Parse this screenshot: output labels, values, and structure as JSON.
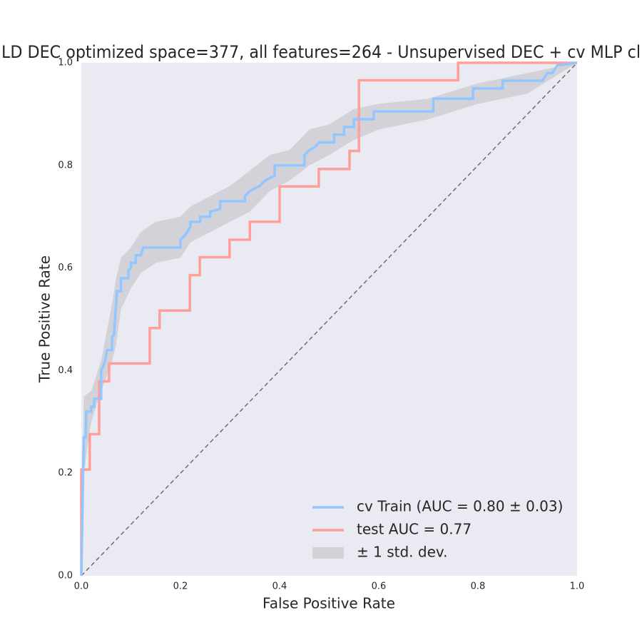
{
  "chart_data": {
    "type": "line",
    "title": "LD DEC optimized space=377, all features=264 - Unsupervised DEC + cv MLP cl",
    "xlabel": "False Positive Rate",
    "ylabel": "True Positive Rate",
    "xlim": [
      0,
      1
    ],
    "ylim": [
      0,
      1
    ],
    "xticks": [
      {
        "value": 0,
        "label": "0.0"
      },
      0.2,
      0.4,
      0.6,
      0.8,
      {
        "value": 1,
        "label": "1.0"
      }
    ],
    "yticks": [
      {
        "value": 0,
        "label": "0.0"
      },
      0.2,
      0.4,
      0.6,
      0.8,
      {
        "value": 1,
        "label": "1.0"
      }
    ],
    "grid": false,
    "legend": "lower right",
    "diagonal": true,
    "series": [
      {
        "name": "cv Train (AUC = 0.80 ± 0.03)",
        "color": "#92c6ff",
        "x": [
          0,
          0.003,
          0.005,
          0.009,
          0.01,
          0.02,
          0.02,
          0.026,
          0.026,
          0.04,
          0.04,
          0.045,
          0.048,
          0.05,
          0.052,
          0.062,
          0.062,
          0.066,
          0.068,
          0.072,
          0.08,
          0.08,
          0.095,
          0.095,
          0.1,
          0.1,
          0.11,
          0.11,
          0.12,
          0.125,
          0.2,
          0.2,
          0.21,
          0.22,
          0.22,
          0.24,
          0.24,
          0.26,
          0.26,
          0.28,
          0.28,
          0.33,
          0.33,
          0.34,
          0.35,
          0.36,
          0.37,
          0.38,
          0.39,
          0.39,
          0.45,
          0.45,
          0.46,
          0.47,
          0.48,
          0.51,
          0.51,
          0.53,
          0.53,
          0.55,
          0.55,
          0.59,
          0.59,
          0.71,
          0.71,
          0.79,
          0.79,
          0.85,
          0.85,
          0.93,
          0.94,
          0.95,
          0.96,
          1
        ],
        "values": [
          0,
          0.17,
          0.27,
          0.27,
          0.32,
          0.32,
          0.33,
          0.33,
          0.345,
          0.345,
          0.4,
          0.41,
          0.42,
          0.43,
          0.44,
          0.44,
          0.465,
          0.47,
          0.5,
          0.555,
          0.555,
          0.58,
          0.58,
          0.595,
          0.6,
          0.61,
          0.61,
          0.625,
          0.625,
          0.64,
          0.64,
          0.655,
          0.665,
          0.68,
          0.69,
          0.69,
          0.7,
          0.7,
          0.71,
          0.715,
          0.73,
          0.73,
          0.74,
          0.75,
          0.755,
          0.76,
          0.77,
          0.775,
          0.78,
          0.8,
          0.8,
          0.82,
          0.83,
          0.835,
          0.845,
          0.845,
          0.86,
          0.86,
          0.875,
          0.875,
          0.89,
          0.89,
          0.905,
          0.905,
          0.93,
          0.93,
          0.95,
          0.95,
          0.965,
          0.965,
          0.98,
          0.98,
          0.995,
          1
        ]
      },
      {
        "name": "test AUC = 0.77",
        "color": "#ff9f9a",
        "x": [
          0,
          0,
          0.017,
          0.017,
          0.036,
          0.036,
          0.056,
          0.056,
          0.138,
          0.138,
          0.158,
          0.158,
          0.219,
          0.219,
          0.239,
          0.239,
          0.299,
          0.299,
          0.34,
          0.34,
          0.4,
          0.4,
          0.479,
          0.479,
          0.541,
          0.541,
          0.56,
          0.56,
          0.76,
          0.76,
          1
        ],
        "values": [
          0,
          0.207,
          0.207,
          0.276,
          0.276,
          0.379,
          0.379,
          0.414,
          0.414,
          0.483,
          0.483,
          0.517,
          0.517,
          0.586,
          0.586,
          0.621,
          0.621,
          0.655,
          0.655,
          0.69,
          0.69,
          0.759,
          0.759,
          0.793,
          0.793,
          0.828,
          0.828,
          0.966,
          0.966,
          1,
          1
        ]
      }
    ],
    "band": {
      "name": "± 1 std. dev.",
      "color": "#d2d2d8",
      "x": [
        0,
        0.005,
        0.02,
        0.04,
        0.06,
        0.07,
        0.08,
        0.1,
        0.12,
        0.15,
        0.2,
        0.22,
        0.26,
        0.3,
        0.34,
        0.38,
        0.42,
        0.46,
        0.5,
        0.55,
        0.6,
        0.7,
        0.8,
        0.9,
        1
      ],
      "lower": [
        0,
        0.2,
        0.3,
        0.36,
        0.41,
        0.45,
        0.52,
        0.56,
        0.59,
        0.61,
        0.62,
        0.65,
        0.67,
        0.69,
        0.71,
        0.75,
        0.77,
        0.8,
        0.82,
        0.85,
        0.87,
        0.89,
        0.92,
        0.94,
        1
      ],
      "upper": [
        0.03,
        0.35,
        0.36,
        0.42,
        0.52,
        0.58,
        0.62,
        0.64,
        0.67,
        0.69,
        0.7,
        0.72,
        0.74,
        0.76,
        0.79,
        0.82,
        0.83,
        0.87,
        0.88,
        0.91,
        0.92,
        0.93,
        0.96,
        0.98,
        1
      ]
    }
  }
}
